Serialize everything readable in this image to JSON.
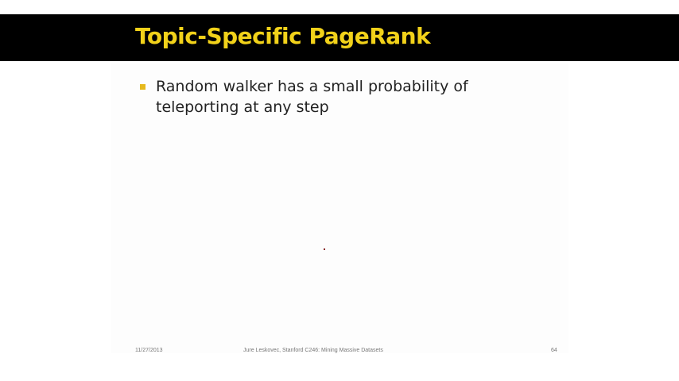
{
  "slide": {
    "title": "Topic-Specific PageRank",
    "bullets": [
      "Random walker has a small probability of teleporting at any step"
    ],
    "footer": {
      "date": "11/27/2013",
      "credit": "Jure Leskovec, Stanford C246: Mining Massive Datasets",
      "page_number": "64"
    },
    "colors": {
      "title_bar": "#000000",
      "title_text": "#f2d21a",
      "bullet_marker": "#e6b91e"
    }
  }
}
